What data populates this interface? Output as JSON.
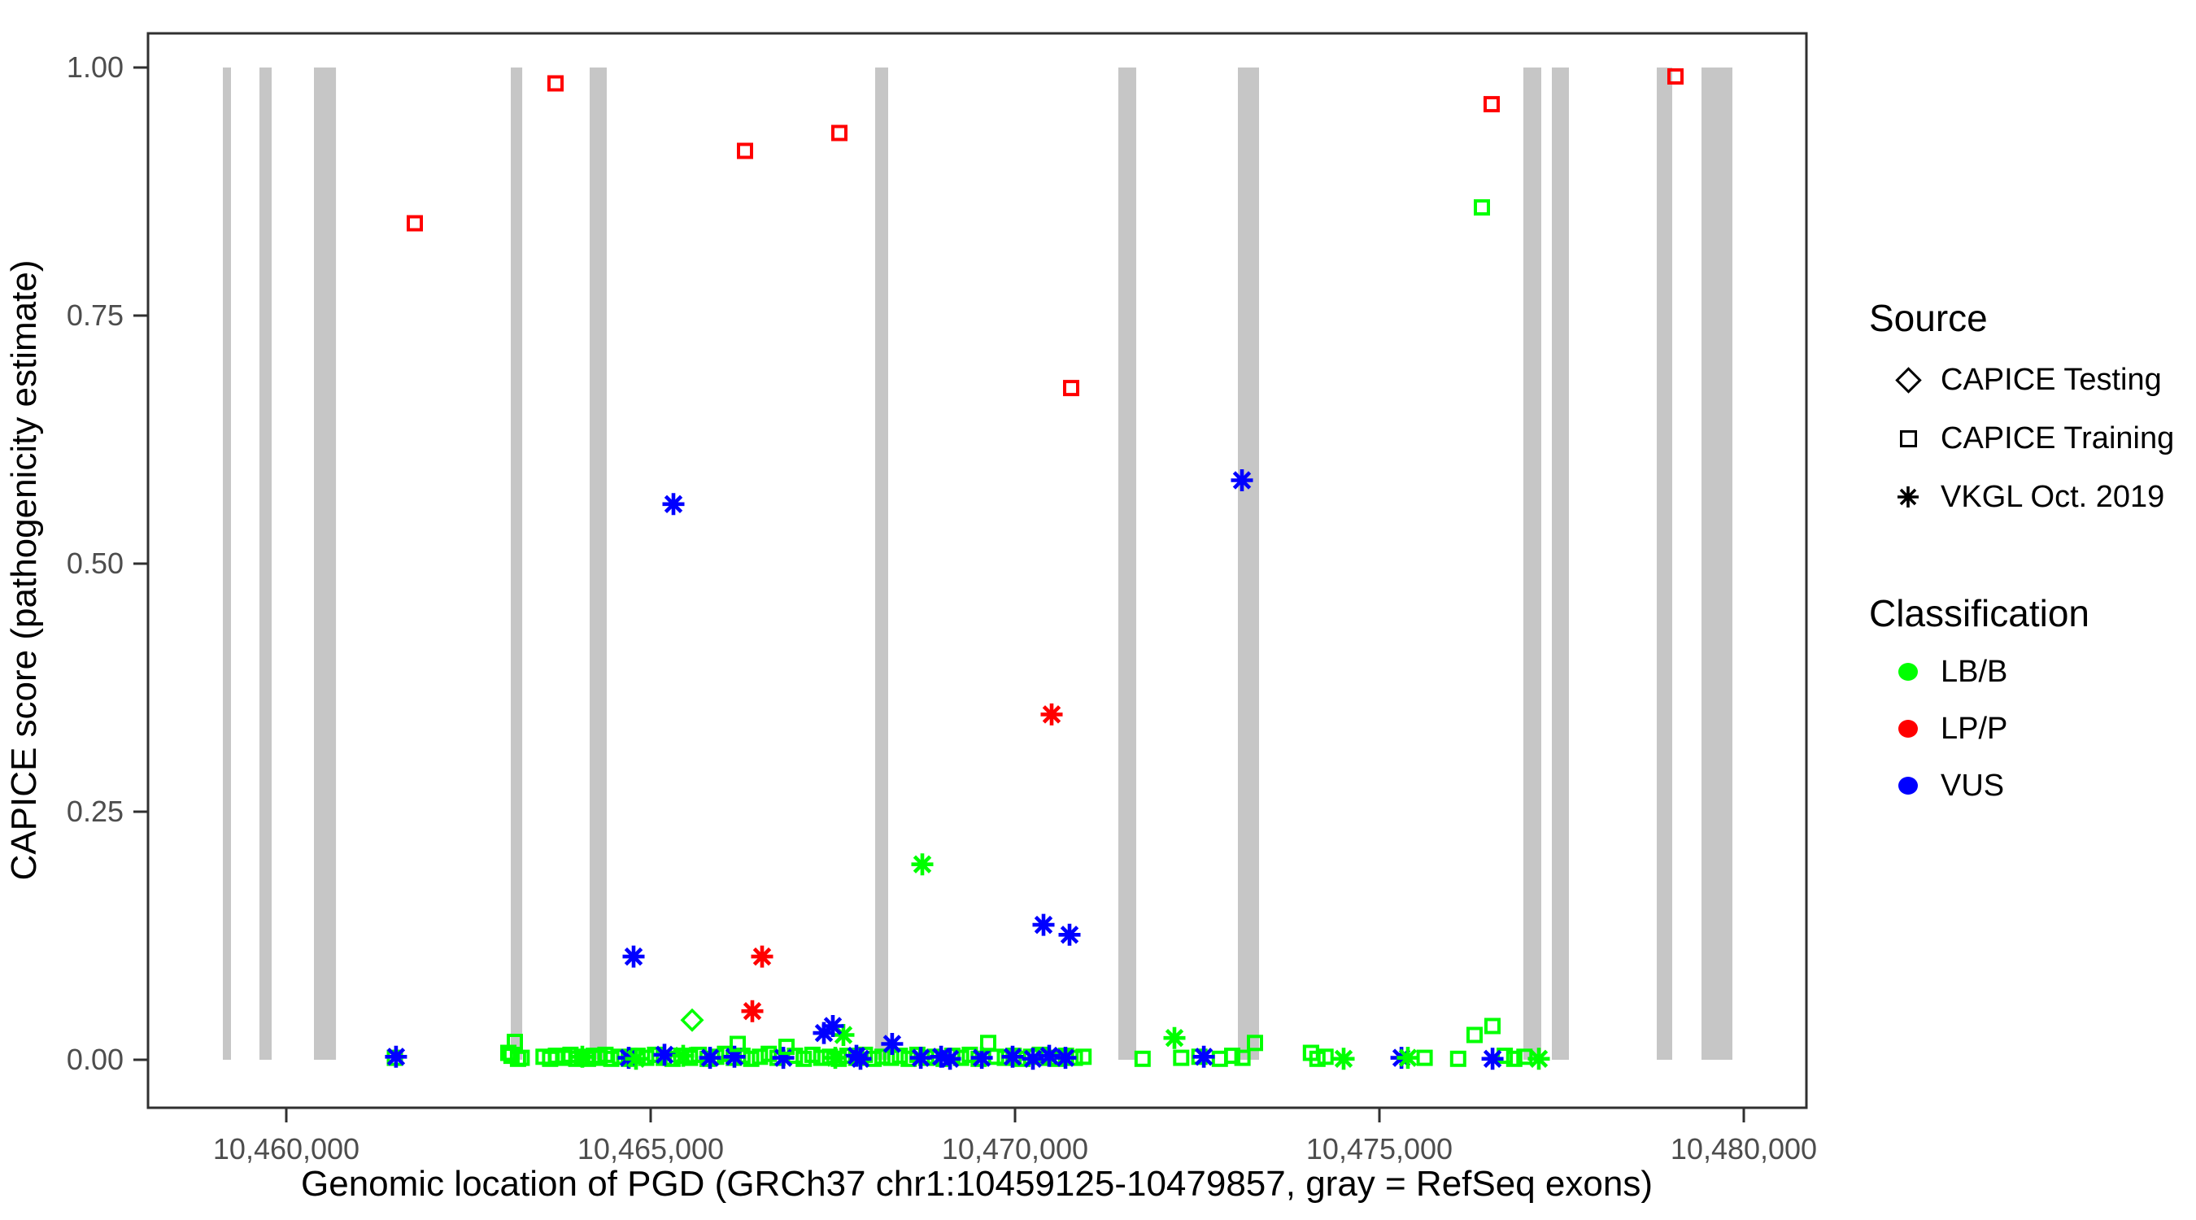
{
  "figure": {
    "background": "#ffffff",
    "panel_border_color": "#303030",
    "tick_label_color": "#4D4D4D",
    "axis_title_color": "#000000"
  },
  "legend": {
    "source": {
      "title": "Source",
      "items": [
        {
          "label": "CAPICE Testing",
          "shape": "diamond"
        },
        {
          "label": "CAPICE Training",
          "shape": "square"
        },
        {
          "label": "VKGL Oct. 2019",
          "shape": "asterisk"
        }
      ]
    },
    "classification": {
      "title": "Classification",
      "items": [
        {
          "label": "LB/B",
          "color": "#00FF00"
        },
        {
          "label": "LP/P",
          "color": "#FF0000"
        },
        {
          "label": "VUS",
          "color": "#0000FF"
        }
      ]
    }
  },
  "chart_data": {
    "type": "scatter",
    "title": "",
    "xlabel": "Genomic location of PGD (GRCh37 chr1:10459125-10479857, gray = RefSeq exons)",
    "ylabel": "CAPICE score (pathogenicity estimate)",
    "xlim_bp": [
      10458103,
      10480859
    ],
    "ylim": [
      0,
      1
    ],
    "grid": false,
    "legend_position": "right",
    "x_ticks": [
      {
        "bp": 10460000,
        "label": "10,460,000"
      },
      {
        "bp": 10465000,
        "label": "10,465,000"
      },
      {
        "bp": 10470000,
        "label": "10,470,000"
      },
      {
        "bp": 10475000,
        "label": "10,475,000"
      },
      {
        "bp": 10480000,
        "label": "10,480,000"
      }
    ],
    "y_ticks": [
      {
        "value": 0.0,
        "label": "0.00"
      },
      {
        "value": 0.25,
        "label": "0.25"
      },
      {
        "value": 0.5,
        "label": "0.50"
      },
      {
        "value": 0.75,
        "label": "0.75"
      },
      {
        "value": 1.0,
        "label": "1.00"
      }
    ],
    "colors": {
      "LB/B": "#00FF00",
      "LP/P": "#FF0000",
      "VUS": "#0000FF"
    },
    "symbols": {
      "CAPICE Testing": "diamond",
      "CAPICE Training": "square",
      "VKGL Oct. 2019": "asterisk"
    },
    "exon_color": "#C6C6C6",
    "exons_bp": [
      [
        10459129,
        10459241
      ],
      [
        10459632,
        10459799
      ],
      [
        10460379,
        10460681
      ],
      [
        10463080,
        10463237
      ],
      [
        10464163,
        10464397
      ],
      [
        10468080,
        10468259
      ],
      [
        10471417,
        10471663
      ],
      [
        10473058,
        10473348
      ],
      [
        10476975,
        10477221
      ],
      [
        10477366,
        10477600
      ],
      [
        10478806,
        10479018
      ],
      [
        10479420,
        10479844
      ]
    ],
    "points": [
      [
        10461490,
        0.002,
        "CAPICE Training",
        "LB/B"
      ],
      [
        10463090,
        0.004,
        "CAPICE Training",
        "LB/B"
      ],
      [
        10463180,
        0.001,
        "CAPICE Training",
        "LB/B"
      ],
      [
        10463230,
        0.002,
        "CAPICE Training",
        "LB/B"
      ],
      [
        10463530,
        0.003,
        "CAPICE Training",
        "LB/B"
      ],
      [
        10463620,
        0.001,
        "CAPICE Training",
        "LB/B"
      ],
      [
        10463700,
        0.004,
        "CAPICE Training",
        "LB/B"
      ],
      [
        10463820,
        0.002,
        "CAPICE Training",
        "LB/B"
      ],
      [
        10463900,
        0.005,
        "CAPICE Training",
        "LB/B"
      ],
      [
        10463980,
        0.001,
        "CAPICE Training",
        "LB/B"
      ],
      [
        10464060,
        0.003,
        "CAPICE Training",
        "LB/B"
      ],
      [
        10464140,
        0.001,
        "CAPICE Training",
        "LB/B"
      ],
      [
        10464220,
        0.004,
        "CAPICE Training",
        "LB/B"
      ],
      [
        10464300,
        0.002,
        "CAPICE Training",
        "LB/B"
      ],
      [
        10464380,
        0.005,
        "CAPICE Training",
        "LB/B"
      ],
      [
        10464460,
        0.001,
        "CAPICE Training",
        "LB/B"
      ],
      [
        10464580,
        0.003,
        "CAPICE Training",
        "LB/B"
      ],
      [
        10464700,
        0.001,
        "CAPICE Training",
        "LB/B"
      ],
      [
        10464820,
        0.004,
        "CAPICE Training",
        "LB/B"
      ],
      [
        10464940,
        0.002,
        "CAPICE Training",
        "LB/B"
      ],
      [
        10465060,
        0.005,
        "CAPICE Training",
        "LB/B"
      ],
      [
        10465180,
        0.002,
        "CAPICE Training",
        "LB/B"
      ],
      [
        10465300,
        0.001,
        "CAPICE Training",
        "LB/B"
      ],
      [
        10465420,
        0.004,
        "CAPICE Training",
        "LB/B"
      ],
      [
        10465540,
        0.002,
        "CAPICE Training",
        "LB/B"
      ],
      [
        10465660,
        0.005,
        "CAPICE Training",
        "LB/B"
      ],
      [
        10465780,
        0.001,
        "CAPICE Training",
        "LB/B"
      ],
      [
        10465900,
        0.003,
        "CAPICE Training",
        "LB/B"
      ],
      [
        10466020,
        0.006,
        "CAPICE Training",
        "LB/B"
      ],
      [
        10466140,
        0.002,
        "CAPICE Training",
        "LB/B"
      ],
      [
        10466260,
        0.004,
        "CAPICE Training",
        "LB/B"
      ],
      [
        10466380,
        0.001,
        "CAPICE Training",
        "LB/B"
      ],
      [
        10466500,
        0.003,
        "CAPICE Training",
        "LB/B"
      ],
      [
        10466620,
        0.006,
        "CAPICE Training",
        "LB/B"
      ],
      [
        10466740,
        0.002,
        "CAPICE Training",
        "LB/B"
      ],
      [
        10466980,
        0.004,
        "CAPICE Training",
        "LB/B"
      ],
      [
        10467100,
        0.001,
        "CAPICE Training",
        "LB/B"
      ],
      [
        10467220,
        0.005,
        "CAPICE Training",
        "LB/B"
      ],
      [
        10467340,
        0.002,
        "CAPICE Training",
        "LB/B"
      ],
      [
        10467460,
        0.003,
        "CAPICE Training",
        "LB/B"
      ],
      [
        10467580,
        0.001,
        "CAPICE Training",
        "LB/B"
      ],
      [
        10467700,
        0.004,
        "CAPICE Training",
        "LB/B"
      ],
      [
        10467820,
        0.002,
        "CAPICE Training",
        "LB/B"
      ],
      [
        10467940,
        0.005,
        "CAPICE Training",
        "LB/B"
      ],
      [
        10468060,
        0.001,
        "CAPICE Training",
        "LB/B"
      ],
      [
        10468180,
        0.003,
        "CAPICE Training",
        "LB/B"
      ],
      [
        10468300,
        0.002,
        "CAPICE Training",
        "LB/B"
      ],
      [
        10468420,
        0.004,
        "CAPICE Training",
        "LB/B"
      ],
      [
        10468540,
        0.001,
        "CAPICE Training",
        "LB/B"
      ],
      [
        10468660,
        0.005,
        "CAPICE Training",
        "LB/B"
      ],
      [
        10468780,
        0.002,
        "CAPICE Training",
        "LB/B"
      ],
      [
        10468900,
        0.003,
        "CAPICE Training",
        "LB/B"
      ],
      [
        10469020,
        0.001,
        "CAPICE Training",
        "LB/B"
      ],
      [
        10469140,
        0.004,
        "CAPICE Training",
        "LB/B"
      ],
      [
        10469260,
        0.002,
        "CAPICE Training",
        "LB/B"
      ],
      [
        10469380,
        0.005,
        "CAPICE Training",
        "LB/B"
      ],
      [
        10469500,
        0.001,
        "CAPICE Training",
        "LB/B"
      ],
      [
        10469740,
        0.003,
        "CAPICE Training",
        "LB/B"
      ],
      [
        10469860,
        0.002,
        "CAPICE Training",
        "LB/B"
      ],
      [
        10469980,
        0.004,
        "CAPICE Training",
        "LB/B"
      ],
      [
        10470100,
        0.001,
        "CAPICE Training",
        "LB/B"
      ],
      [
        10470220,
        0.003,
        "CAPICE Training",
        "LB/B"
      ],
      [
        10470340,
        0.005,
        "CAPICE Training",
        "LB/B"
      ],
      [
        10470460,
        0.002,
        "CAPICE Training",
        "LB/B"
      ],
      [
        10470580,
        0.001,
        "CAPICE Training",
        "LB/B"
      ],
      [
        10470700,
        0.004,
        "CAPICE Training",
        "LB/B"
      ],
      [
        10470820,
        0.002,
        "CAPICE Training",
        "LB/B"
      ],
      [
        10470940,
        0.003,
        "CAPICE Training",
        "LB/B"
      ],
      [
        10471750,
        0.001,
        "CAPICE Training",
        "LB/B"
      ],
      [
        10472280,
        0.002,
        "CAPICE Training",
        "LB/B"
      ],
      [
        10472530,
        0.003,
        "CAPICE Training",
        "LB/B"
      ],
      [
        10472810,
        0.001,
        "CAPICE Training",
        "LB/B"
      ],
      [
        10472980,
        0.004,
        "CAPICE Training",
        "LB/B"
      ],
      [
        10473120,
        0.002,
        "CAPICE Training",
        "LB/B"
      ],
      [
        10474060,
        0.007,
        "CAPICE Training",
        "LB/B"
      ],
      [
        10474150,
        0.001,
        "CAPICE Training",
        "LB/B"
      ],
      [
        10474260,
        0.003,
        "CAPICE Training",
        "LB/B"
      ],
      [
        10475620,
        0.002,
        "CAPICE Training",
        "LB/B"
      ],
      [
        10476080,
        0.001,
        "CAPICE Training",
        "LB/B"
      ],
      [
        10476720,
        0.004,
        "CAPICE Training",
        "LB/B"
      ],
      [
        10476850,
        0.001,
        "CAPICE Training",
        "LB/B"
      ],
      [
        10476990,
        0.003,
        "CAPICE Training",
        "LB/B"
      ],
      [
        10461506,
        0.003,
        "VKGL Oct. 2019",
        "VUS"
      ],
      [
        10464699,
        0.002,
        "VKGL Oct. 2019",
        "VUS"
      ],
      [
        10465190,
        0.005,
        "VKGL Oct. 2019",
        "VUS"
      ],
      [
        10465815,
        0.002,
        "VKGL Oct. 2019",
        "VUS"
      ],
      [
        10466150,
        0.003,
        "VKGL Oct. 2019",
        "VUS"
      ],
      [
        10466820,
        0.002,
        "VKGL Oct. 2019",
        "VUS"
      ],
      [
        10467824,
        0.004,
        "VKGL Oct. 2019",
        "VUS"
      ],
      [
        10467880,
        0.001,
        "VKGL Oct. 2019",
        "VUS"
      ],
      [
        10468706,
        0.002,
        "VKGL Oct. 2019",
        "VUS"
      ],
      [
        10468985,
        0.003,
        "VKGL Oct. 2019",
        "VUS"
      ],
      [
        10469108,
        0.001,
        "VKGL Oct. 2019",
        "VUS"
      ],
      [
        10469543,
        0.002,
        "VKGL Oct. 2019",
        "VUS"
      ],
      [
        10469967,
        0.003,
        "VKGL Oct. 2019",
        "VUS"
      ],
      [
        10470246,
        0.001,
        "VKGL Oct. 2019",
        "VUS"
      ],
      [
        10470469,
        0.004,
        "VKGL Oct. 2019",
        "VUS"
      ],
      [
        10470692,
        0.002,
        "VKGL Oct. 2019",
        "VUS"
      ],
      [
        10472590,
        0.003,
        "VKGL Oct. 2019",
        "VUS"
      ],
      [
        10475302,
        0.002,
        "VKGL Oct. 2019",
        "VUS"
      ],
      [
        10476552,
        0.001,
        "VKGL Oct. 2019",
        "VUS"
      ],
      [
        10464062,
        0.003,
        "VKGL Oct. 2019",
        "LB/B"
      ],
      [
        10464799,
        0.001,
        "VKGL Oct. 2019",
        "LB/B"
      ],
      [
        10465446,
        0.004,
        "VKGL Oct. 2019",
        "LB/B"
      ],
      [
        10467533,
        0.002,
        "VKGL Oct. 2019",
        "LB/B"
      ],
      [
        10474509,
        0.001,
        "VKGL Oct. 2019",
        "LB/B"
      ],
      [
        10475391,
        0.002,
        "VKGL Oct. 2019",
        "LB/B"
      ],
      [
        10477187,
        0.001,
        "VKGL Oct. 2019",
        "LB/B"
      ],
      [
        10463047,
        0.007,
        "CAPICE Training",
        "LB/B"
      ],
      [
        10463136,
        0.018,
        "CAPICE Training",
        "LB/B"
      ],
      [
        10466194,
        0.016,
        "CAPICE Training",
        "LB/B"
      ],
      [
        10466864,
        0.013,
        "CAPICE Training",
        "LB/B"
      ],
      [
        10469632,
        0.017,
        "CAPICE Training",
        "LB/B"
      ],
      [
        10473292,
        0.017,
        "CAPICE Training",
        "LB/B"
      ],
      [
        10474063,
        0.007,
        "CAPICE Training",
        "LB/B"
      ],
      [
        10476306,
        0.025,
        "CAPICE Training",
        "LB/B"
      ],
      [
        10476551,
        0.034,
        "CAPICE Training",
        "LB/B"
      ],
      [
        10465569,
        0.04,
        "CAPICE Testing",
        "LB/B"
      ],
      [
        10467645,
        0.025,
        "VKGL Oct. 2019",
        "LB/B"
      ],
      [
        10472188,
        0.022,
        "VKGL Oct. 2019",
        "LB/B"
      ],
      [
        10468728,
        0.197,
        "VKGL Oct. 2019",
        "LB/B"
      ],
      [
        10467377,
        0.027,
        "VKGL Oct. 2019",
        "VUS"
      ],
      [
        10467500,
        0.034,
        "VKGL Oct. 2019",
        "VUS"
      ],
      [
        10468314,
        0.016,
        "VKGL Oct. 2019",
        "VUS"
      ],
      [
        10464766,
        0.104,
        "VKGL Oct. 2019",
        "VUS"
      ],
      [
        10470391,
        0.136,
        "VKGL Oct. 2019",
        "VUS"
      ],
      [
        10470748,
        0.126,
        "VKGL Oct. 2019",
        "VUS"
      ],
      [
        10465312,
        0.56,
        "VKGL Oct. 2019",
        "VUS"
      ],
      [
        10473114,
        0.584,
        "VKGL Oct. 2019",
        "VUS"
      ],
      [
        10466395,
        0.049,
        "VKGL Oct. 2019",
        "LP/P"
      ],
      [
        10466529,
        0.104,
        "VKGL Oct. 2019",
        "LP/P"
      ],
      [
        10470502,
        0.348,
        "VKGL Oct. 2019",
        "LP/P"
      ],
      [
        10476406,
        0.859,
        "CAPICE Training",
        "LB/B"
      ],
      [
        10461763,
        0.843,
        "CAPICE Training",
        "LP/P"
      ],
      [
        10463694,
        0.984,
        "CAPICE Training",
        "LP/P"
      ],
      [
        10466295,
        0.916,
        "CAPICE Training",
        "LP/P"
      ],
      [
        10467589,
        0.934,
        "CAPICE Training",
        "LP/P"
      ],
      [
        10470770,
        0.677,
        "CAPICE Training",
        "LP/P"
      ],
      [
        10476540,
        0.963,
        "CAPICE Training",
        "LP/P"
      ],
      [
        10479062,
        0.991,
        "CAPICE Training",
        "LP/P"
      ]
    ]
  }
}
